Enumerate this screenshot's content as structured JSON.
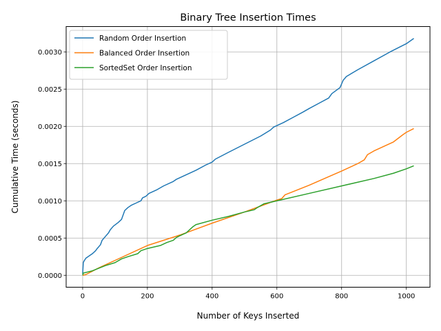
{
  "chart_data": {
    "type": "line",
    "title": "Binary Tree Insertion Times",
    "xlabel": "Number of Keys Inserted",
    "ylabel": "Cumulative Time (seconds)",
    "xlim": [
      -51,
      1073
    ],
    "ylim": [
      -0.00016,
      0.00334
    ],
    "xticks": [
      0,
      200,
      400,
      600,
      800,
      1000
    ],
    "xtick_labels": [
      "0",
      "200",
      "400",
      "600",
      "800",
      "1000"
    ],
    "yticks": [
      0,
      0.0005,
      0.001,
      0.0015,
      0.002,
      0.0025,
      0.003
    ],
    "ytick_labels": [
      "0.0000",
      "0.0005",
      "0.0010",
      "0.0015",
      "0.0020",
      "0.0025",
      "0.0030"
    ],
    "grid": true,
    "legend_position": "top-left",
    "series": [
      {
        "name": "Random Order Insertion",
        "color": "#1f77b4",
        "x": [
          0,
          2,
          4,
          10,
          20,
          30,
          40,
          45,
          55,
          60,
          70,
          80,
          85,
          95,
          110,
          120,
          125,
          130,
          140,
          150,
          170,
          180,
          185,
          195,
          205,
          230,
          250,
          280,
          290,
          320,
          350,
          380,
          400,
          410,
          450,
          500,
          550,
          580,
          590,
          620,
          650,
          680,
          700,
          730,
          760,
          770,
          795,
          805,
          815,
          850,
          900,
          950,
          1000,
          1023
        ],
        "y": [
          2e-05,
          0.00017,
          0.00019,
          0.00023,
          0.00026,
          0.00029,
          0.00033,
          0.00036,
          0.00041,
          0.00047,
          0.00052,
          0.00057,
          0.00061,
          0.00066,
          0.00071,
          0.00075,
          0.00081,
          0.00087,
          0.00091,
          0.00094,
          0.00098,
          0.001,
          0.00104,
          0.00106,
          0.0011,
          0.00115,
          0.0012,
          0.00126,
          0.00129,
          0.00135,
          0.00141,
          0.00148,
          0.00152,
          0.00156,
          0.00165,
          0.00176,
          0.00187,
          0.00195,
          0.00199,
          0.00205,
          0.00212,
          0.00219,
          0.00224,
          0.00231,
          0.00238,
          0.00244,
          0.00252,
          0.00262,
          0.00267,
          0.00276,
          0.00288,
          0.003,
          0.00311,
          0.00318
        ]
      },
      {
        "name": "Balanced Order Insertion",
        "color": "#ff7f0e",
        "x": [
          0,
          10,
          50,
          100,
          200,
          300,
          400,
          500,
          600,
          615,
          625,
          700,
          800,
          850,
          870,
          880,
          900,
          950,
          960,
          975,
          990,
          1000,
          1023
        ],
        "y": [
          0,
          1e-05,
          0.0001,
          0.0002,
          0.0004,
          0.00054,
          0.0007,
          0.00085,
          0.00101,
          0.00103,
          0.00108,
          0.00121,
          0.0014,
          0.0015,
          0.00155,
          0.00162,
          0.00167,
          0.00177,
          0.00179,
          0.00184,
          0.00189,
          0.00192,
          0.00197
        ]
      },
      {
        "name": "SortedSet Order Insertion",
        "color": "#2ca02c",
        "x": [
          0,
          2,
          30,
          70,
          100,
          120,
          140,
          170,
          180,
          200,
          240,
          260,
          280,
          290,
          300,
          320,
          330,
          340,
          350,
          400,
          450,
          500,
          530,
          540,
          560,
          600,
          700,
          800,
          900,
          960,
          1000,
          1023
        ],
        "y": [
          0,
          3e-05,
          6e-05,
          0.00013,
          0.00017,
          0.00022,
          0.00025,
          0.00029,
          0.00033,
          0.00036,
          0.0004,
          0.00044,
          0.00047,
          0.00051,
          0.00053,
          0.00057,
          0.00061,
          0.00065,
          0.00068,
          0.00074,
          0.00079,
          0.00085,
          0.00088,
          0.00091,
          0.00096,
          0.001,
          0.0011,
          0.0012,
          0.0013,
          0.00137,
          0.00143,
          0.00147
        ]
      }
    ]
  }
}
